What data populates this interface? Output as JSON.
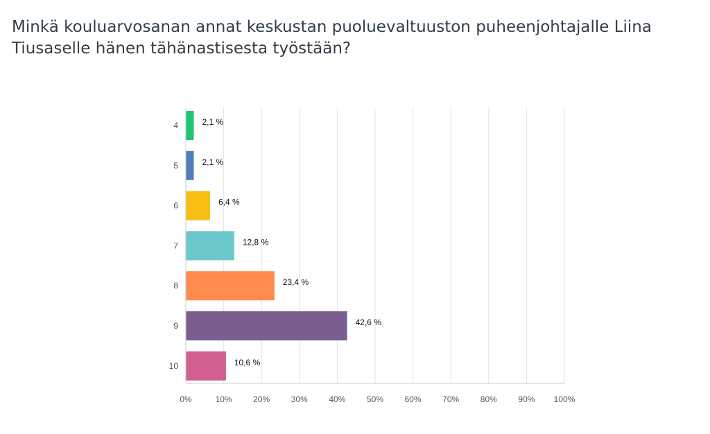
{
  "chart_data": {
    "type": "bar",
    "orientation": "horizontal",
    "title": "Minkä kouluarvosanan annat keskustan puoluevaltuuston puheenjohtajalle Liina Tiusaselle hänen tähänastisesta työstään?",
    "categories": [
      "4",
      "5",
      "6",
      "7",
      "8",
      "9",
      "10"
    ],
    "values": [
      2.1,
      2.1,
      6.4,
      12.8,
      23.4,
      42.6,
      10.6
    ],
    "data_labels": [
      "2,1 %",
      "2,1 %",
      "6,4 %",
      "12,8 %",
      "23,4 %",
      "42,6 %",
      "10,6 %"
    ],
    "colors": [
      "#20c573",
      "#527dba",
      "#f6bf12",
      "#6bc8cd",
      "#ff8b4f",
      "#7c5f91",
      "#d25f90"
    ],
    "xlim": [
      0,
      100
    ],
    "x_ticks": [
      0,
      10,
      20,
      30,
      40,
      50,
      60,
      70,
      80,
      90,
      100
    ],
    "x_tick_labels": [
      "0%",
      "10%",
      "20%",
      "30%",
      "40%",
      "50%",
      "60%",
      "70%",
      "80%",
      "90%",
      "100%"
    ],
    "xlabel": "",
    "ylabel": "",
    "grid": true,
    "legend": "none"
  }
}
